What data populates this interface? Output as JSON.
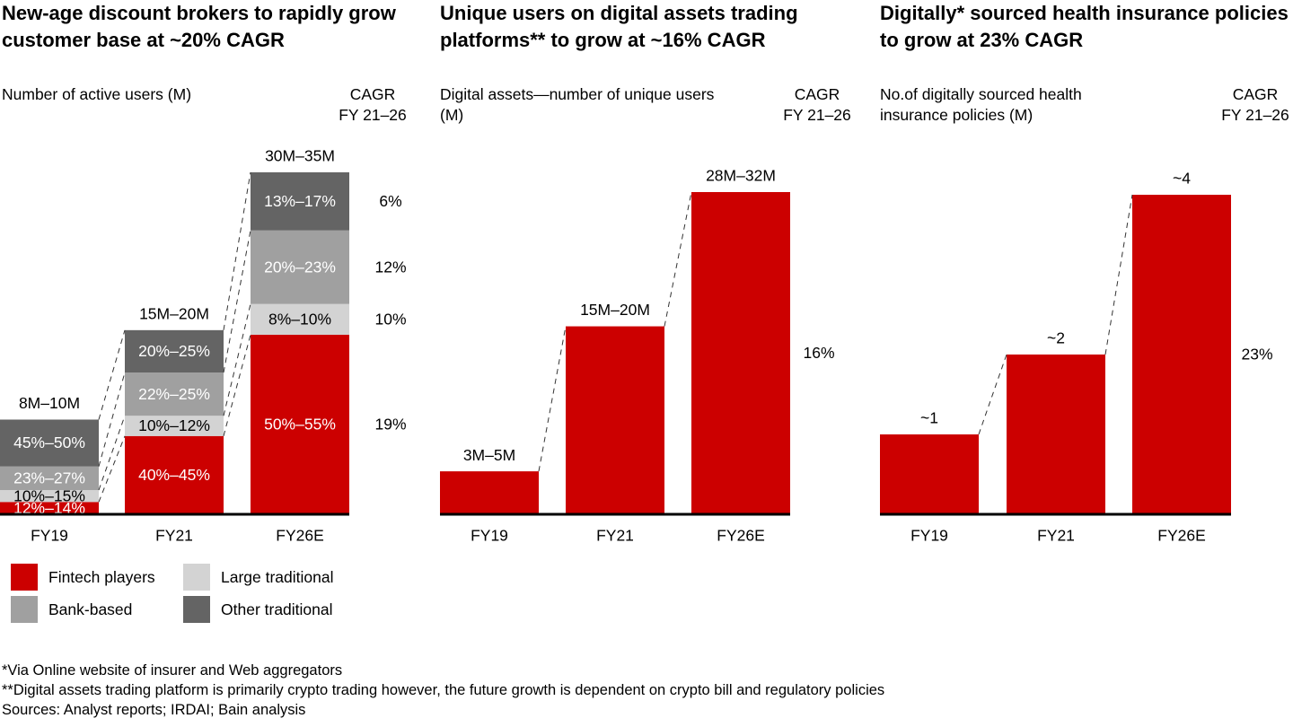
{
  "colors": {
    "fintech": "#CC0000",
    "bank": "#A0A0A0",
    "large": "#D3D3D3",
    "other": "#646464",
    "axis": "#000000",
    "connector": "#333333"
  },
  "legend": [
    {
      "key": "fintech",
      "label": "Fintech players"
    },
    {
      "key": "large",
      "label": "Large traditional"
    },
    {
      "key": "bank",
      "label": "Bank-based"
    },
    {
      "key": "other",
      "label": "Other traditional"
    }
  ],
  "panels": [
    {
      "title": "New-age discount brokers to rapidly grow customer base at ~20% CAGR",
      "subtitle": "Number of active users (M)",
      "cagr_header": [
        "CAGR",
        "FY 21–26"
      ]
    },
    {
      "title": "Unique users on digital assets trading platforms** to grow at ~16% CAGR",
      "subtitle": "Digital assets—number of unique users (M)",
      "cagr_header": [
        "CAGR",
        "FY 21–26"
      ]
    },
    {
      "title": "Digitally* sourced health insurance policies to grow at 23% CAGR",
      "subtitle": "No.of digitally sourced health insurance policies (M)",
      "cagr_header": [
        "CAGR",
        "FY 21–26"
      ]
    }
  ],
  "chart_data": [
    {
      "type": "bar",
      "stacked": true,
      "title": "New-age discount brokers to rapidly grow customer base at ~20% CAGR",
      "ylabel": "Number of active users (M)",
      "categories": [
        "FY19",
        "FY21",
        "FY26E"
      ],
      "totals": [
        9,
        17.5,
        32.5
      ],
      "total_labels": [
        "8M–10M",
        "15M–20M",
        "30M–35M"
      ],
      "ylim": [
        0,
        32.5
      ],
      "series": [
        {
          "name": "Fintech players",
          "key": "fintech",
          "share": [
            0.13,
            0.425,
            0.525
          ],
          "labels": [
            "12%–14%",
            "40%–45%",
            "50%–55%"
          ],
          "cagr": "19%",
          "label_color": "#ffffff"
        },
        {
          "name": "Large traditional",
          "key": "large",
          "share": [
            0.125,
            0.11,
            0.09
          ],
          "labels": [
            "10%–15%",
            "10%–12%",
            "8%–10%"
          ],
          "cagr": "10%",
          "label_color": "#000000"
        },
        {
          "name": "Bank-based",
          "key": "bank",
          "share": [
            0.25,
            0.235,
            0.215
          ],
          "labels": [
            "23%–27%",
            "22%–25%",
            "20%–23%"
          ],
          "cagr": "12%",
          "label_color": "#ffffff"
        },
        {
          "name": "Other traditional",
          "key": "other",
          "share": [
            0.495,
            0.23,
            0.17
          ],
          "labels": [
            "45%–50%",
            "20%–25%",
            "13%–17%"
          ],
          "cagr": "6%",
          "label_color": "#ffffff"
        }
      ],
      "cagr_period": "FY 21–26",
      "legend_placement": "bottom-left",
      "grid": false
    },
    {
      "type": "bar",
      "title": "Unique users on digital assets trading platforms** to grow at ~16% CAGR",
      "ylabel": "Digital assets—number of unique users (M)",
      "categories": [
        "FY19",
        "FY21",
        "FY26E"
      ],
      "values": [
        4,
        17.5,
        30
      ],
      "value_labels": [
        "3M–5M",
        "15M–20M",
        "28M–32M"
      ],
      "ylim": [
        0,
        30
      ],
      "cagr": "16%",
      "cagr_period": "FY 21–26",
      "grid": false
    },
    {
      "type": "bar",
      "title": "Digitally* sourced health insurance policies to grow at 23% CAGR",
      "ylabel": "No.of digitally sourced health insurance policies (M)",
      "categories": [
        "FY19",
        "FY21",
        "FY26E"
      ],
      "values": [
        1,
        2,
        4
      ],
      "value_labels": [
        "~1",
        "~2",
        "~4"
      ],
      "ylim": [
        0,
        4.2
      ],
      "cagr": "23%",
      "cagr_period": "FY 21–26",
      "grid": false
    }
  ],
  "footnotes": [
    "*Via Online website of insurer and Web aggregators",
    "**Digital assets trading platform is primarily crypto trading however, the future growth is dependent on crypto bill and regulatory policies",
    "Sources: Analyst reports; IRDAI; Bain analysis"
  ]
}
